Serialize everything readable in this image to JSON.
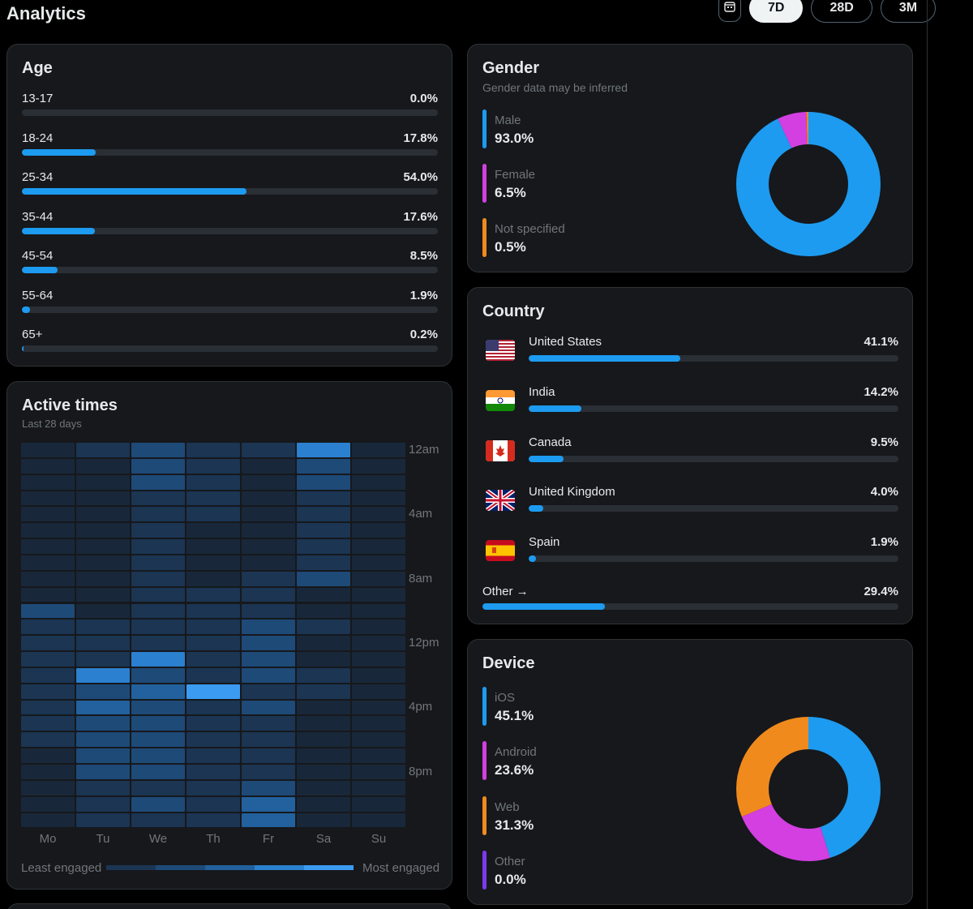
{
  "header": {
    "title": "Analytics",
    "calendar_icon": "calendar-icon",
    "ranges": [
      {
        "label": "7D",
        "active": true
      },
      {
        "label": "28D",
        "active": false
      },
      {
        "label": "3M",
        "active": false
      }
    ]
  },
  "age": {
    "title": "Age",
    "rows": [
      {
        "label": "13-17",
        "value": "0.0%",
        "pct": 0.0
      },
      {
        "label": "18-24",
        "value": "17.8%",
        "pct": 17.8
      },
      {
        "label": "25-34",
        "value": "54.0%",
        "pct": 54.0
      },
      {
        "label": "35-44",
        "value": "17.6%",
        "pct": 17.6
      },
      {
        "label": "45-54",
        "value": "8.5%",
        "pct": 8.5
      },
      {
        "label": "55-64",
        "value": "1.9%",
        "pct": 1.9
      },
      {
        "label": "65+",
        "value": "0.2%",
        "pct": 0.2
      }
    ]
  },
  "gender": {
    "title": "Gender",
    "subtitle": "Gender data may be inferred",
    "items": [
      {
        "label": "Male",
        "value": "93.0%",
        "pct": 93.0,
        "color": "#1d9bf0"
      },
      {
        "label": "Female",
        "value": "6.5%",
        "pct": 6.5,
        "color": "#d33fe0"
      },
      {
        "label": "Not specified",
        "value": "0.5%",
        "pct": 0.5,
        "color": "#f08a1d"
      }
    ]
  },
  "country": {
    "title": "Country",
    "rows": [
      {
        "label": "United States",
        "value": "41.1%",
        "pct": 41.1,
        "flag": "us-flag-icon"
      },
      {
        "label": "India",
        "value": "14.2%",
        "pct": 14.2,
        "flag": "india-flag-icon"
      },
      {
        "label": "Canada",
        "value": "9.5%",
        "pct": 9.5,
        "flag": "canada-flag-icon"
      },
      {
        "label": "United Kingdom",
        "value": "4.0%",
        "pct": 4.0,
        "flag": "uk-flag-icon"
      },
      {
        "label": "Spain",
        "value": "1.9%",
        "pct": 1.9,
        "flag": "spain-flag-icon"
      }
    ],
    "other": {
      "label": "Other →",
      "value": "29.4%",
      "pct": 29.4
    }
  },
  "active_times": {
    "title": "Active times",
    "subtitle": "Last 28 days",
    "days": [
      "Mo",
      "Tu",
      "We",
      "Th",
      "Fr",
      "Sa",
      "Su"
    ],
    "hour_labels": [
      "12am",
      "4am",
      "8am",
      "12pm",
      "4pm",
      "8pm"
    ],
    "legend_low": "Least engaged",
    "legend_high": "Most engaged",
    "intensity": [
      [
        1,
        2,
        3,
        2,
        2,
        5,
        1
      ],
      [
        1,
        1,
        3,
        2,
        1,
        3,
        1
      ],
      [
        1,
        1,
        3,
        2,
        1,
        3,
        1
      ],
      [
        1,
        1,
        2,
        2,
        1,
        2,
        1
      ],
      [
        1,
        1,
        2,
        2,
        1,
        2,
        1
      ],
      [
        1,
        1,
        2,
        1,
        1,
        2,
        1
      ],
      [
        1,
        1,
        2,
        1,
        1,
        2,
        1
      ],
      [
        1,
        1,
        2,
        1,
        1,
        2,
        1
      ],
      [
        1,
        1,
        2,
        1,
        2,
        3,
        1
      ],
      [
        1,
        1,
        2,
        2,
        2,
        1,
        1
      ],
      [
        3,
        1,
        2,
        2,
        2,
        1,
        1
      ],
      [
        2,
        2,
        2,
        2,
        3,
        2,
        1
      ],
      [
        2,
        2,
        2,
        2,
        3,
        1,
        1
      ],
      [
        2,
        2,
        5,
        2,
        3,
        1,
        1
      ],
      [
        2,
        5,
        3,
        2,
        3,
        2,
        1
      ],
      [
        2,
        3,
        4,
        6,
        2,
        2,
        1
      ],
      [
        2,
        4,
        3,
        2,
        3,
        1,
        1
      ],
      [
        2,
        3,
        3,
        2,
        2,
        1,
        1
      ],
      [
        2,
        3,
        3,
        2,
        2,
        1,
        1
      ],
      [
        1,
        3,
        3,
        2,
        2,
        1,
        1
      ],
      [
        1,
        3,
        3,
        2,
        2,
        1,
        1
      ],
      [
        1,
        2,
        2,
        2,
        3,
        1,
        1
      ],
      [
        1,
        2,
        3,
        2,
        4,
        1,
        1
      ],
      [
        1,
        2,
        2,
        2,
        4,
        1,
        1
      ]
    ]
  },
  "device": {
    "title": "Device",
    "items": [
      {
        "label": "iOS",
        "value": "45.1%",
        "pct": 45.1,
        "color": "#1d9bf0"
      },
      {
        "label": "Android",
        "value": "23.6%",
        "pct": 23.6,
        "color": "#d33fe0"
      },
      {
        "label": "Web",
        "value": "31.3%",
        "pct": 31.3,
        "color": "#f08a1d"
      },
      {
        "label": "Other",
        "value": "0.0%",
        "pct": 0.0,
        "color": "#7c3aed"
      }
    ]
  }
}
